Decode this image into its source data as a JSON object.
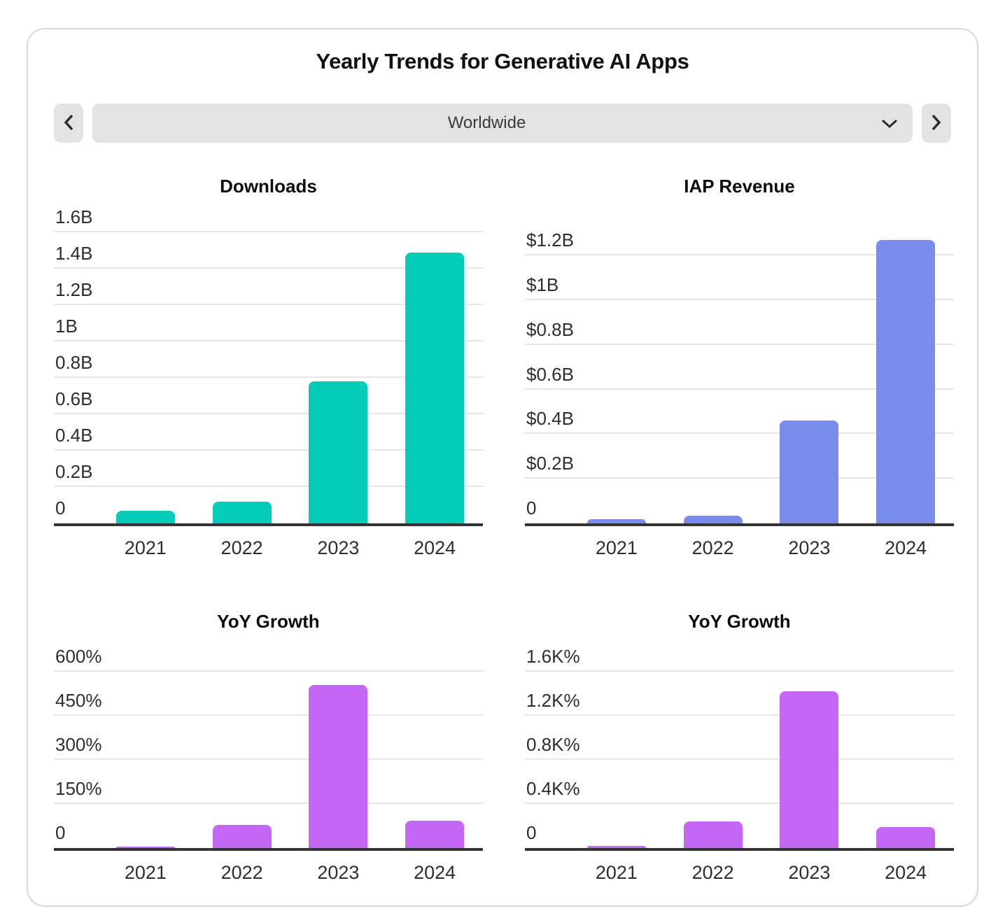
{
  "card": {
    "title": "Yearly Trends for Generative AI Apps"
  },
  "controls": {
    "prev": {
      "icon": "chevron-left"
    },
    "next": {
      "icon": "chevron-right"
    },
    "region_selector": {
      "value": "Worldwide",
      "icon": "chevron-down"
    }
  },
  "colors": {
    "downloads_bar": "#03cdb9",
    "revenue_bar": "#7a8ceb",
    "growth_bar": "#c467f6",
    "grid_line": "#e5e5e5",
    "axis_line": "#333333",
    "control_bg": "#e3e3e3"
  },
  "chart_data": [
    {
      "type": "bar",
      "title": "Downloads",
      "row": "top",
      "color": "#03cdb9",
      "categories": [
        "2021",
        "2022",
        "2023",
        "2024"
      ],
      "values": [
        0.07,
        0.12,
        0.78,
        1.49
      ],
      "yticks": [
        {
          "value": 0,
          "label": "0"
        },
        {
          "value": 0.2,
          "label": "0.2B"
        },
        {
          "value": 0.4,
          "label": "0.4B"
        },
        {
          "value": 0.6,
          "label": "0.6B"
        },
        {
          "value": 0.8,
          "label": "0.8B"
        },
        {
          "value": 1,
          "label": "1B"
        },
        {
          "value": 1.2,
          "label": "1.2B"
        },
        {
          "value": 1.4,
          "label": "1.4B"
        },
        {
          "value": 1.6,
          "label": "1.6B"
        }
      ],
      "ylim": [
        0,
        1.7
      ],
      "grid": true,
      "legend": false
    },
    {
      "type": "bar",
      "title": "IAP Revenue",
      "row": "top",
      "color": "#7a8ceb",
      "categories": [
        "2021",
        "2022",
        "2023",
        "2024"
      ],
      "values": [
        0.02,
        0.035,
        0.46,
        1.27
      ],
      "yticks": [
        {
          "value": 0,
          "label": "0"
        },
        {
          "value": 0.2,
          "label": "$0.2B"
        },
        {
          "value": 0.4,
          "label": "$0.4B"
        },
        {
          "value": 0.6,
          "label": "$0.6B"
        },
        {
          "value": 0.8,
          "label": "$0.8B"
        },
        {
          "value": 1,
          "label": "$1B"
        },
        {
          "value": 1.2,
          "label": "$1.2B"
        }
      ],
      "ylim": [
        0,
        1.385
      ],
      "grid": true,
      "legend": false
    },
    {
      "type": "bar",
      "title": "YoY Growth",
      "row": "bottom",
      "color": "#c467f6",
      "categories": [
        "2021",
        "2022",
        "2023",
        "2024"
      ],
      "values": [
        5,
        78,
        555,
        93
      ],
      "yticks": [
        {
          "value": 0,
          "label": "0"
        },
        {
          "value": 150,
          "label": "150%"
        },
        {
          "value": 300,
          "label": "300%"
        },
        {
          "value": 450,
          "label": "450%"
        },
        {
          "value": 600,
          "label": "600%"
        }
      ],
      "ylim": [
        0,
        676
      ],
      "grid": true,
      "legend": false
    },
    {
      "type": "bar",
      "title": "YoY Growth",
      "row": "bottom",
      "color": "#c467f6",
      "categories": [
        "2021",
        "2022",
        "2023",
        "2024"
      ],
      "values": [
        20,
        240,
        1420,
        190
      ],
      "yticks": [
        {
          "value": 0,
          "label": "0"
        },
        {
          "value": 400,
          "label": "0.4K%"
        },
        {
          "value": 800,
          "label": "0.8K%"
        },
        {
          "value": 1200,
          "label": "1.2K%"
        },
        {
          "value": 1600,
          "label": "1.6K%"
        }
      ],
      "ylim": [
        0,
        1803
      ],
      "grid": true,
      "legend": false
    }
  ]
}
